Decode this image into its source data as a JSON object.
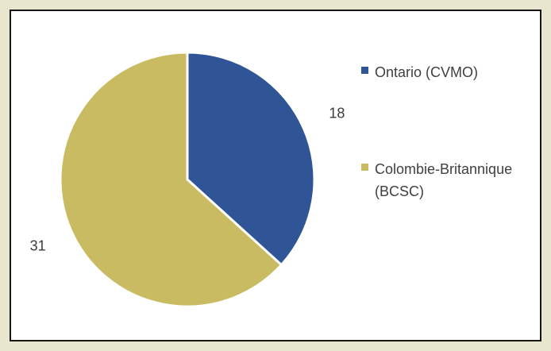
{
  "chart_data": {
    "type": "pie",
    "title": "",
    "slices": [
      {
        "label": "Ontario (CVMO)",
        "value": 18,
        "value_label": "18",
        "color": "#2f5597"
      },
      {
        "label": "Colombie-Britannique (BCSC)",
        "value": 31,
        "value_label": "31",
        "color": "#c9bb62"
      }
    ],
    "legend_position": "right",
    "legend": [
      {
        "lines": [
          "Ontario (CVMO)"
        ],
        "color": "#2f5597"
      },
      {
        "lines": [
          "Colombie-Britannique",
          "(BCSC)"
        ],
        "color": "#c9bb62"
      }
    ]
  }
}
